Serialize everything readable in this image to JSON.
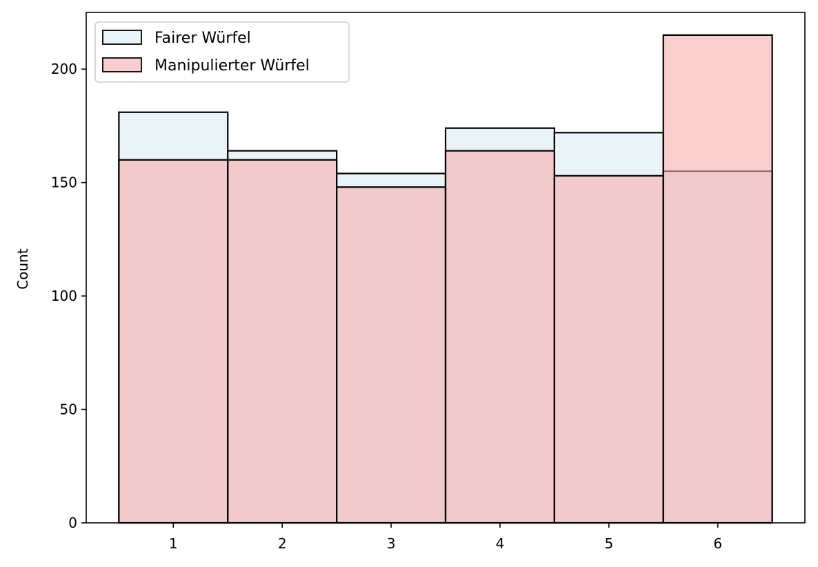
{
  "chart_data": {
    "type": "histogram",
    "categories": [
      "1",
      "2",
      "3",
      "4",
      "5",
      "6"
    ],
    "x": [
      1,
      2,
      3,
      4,
      5,
      6
    ],
    "xlim": [
      0.2,
      6.8
    ],
    "ylim": [
      0,
      225
    ],
    "ylabel": "Count",
    "xlabel": "",
    "yticks": [
      0,
      50,
      100,
      150,
      200
    ],
    "xticks": [
      1,
      2,
      3,
      4,
      5,
      6
    ],
    "grid": false,
    "legend_position": "top-left",
    "series": [
      {
        "name": "Fairer Würfel",
        "values": [
          181,
          164,
          154,
          174,
          172,
          155
        ],
        "color": "#eaf4f8"
      },
      {
        "name": "Manipulierter Würfel",
        "values": [
          160,
          160,
          148,
          164,
          153,
          215
        ],
        "color": "#f5adad",
        "opacity": 0.6
      }
    ],
    "edge_color": "#000000"
  }
}
